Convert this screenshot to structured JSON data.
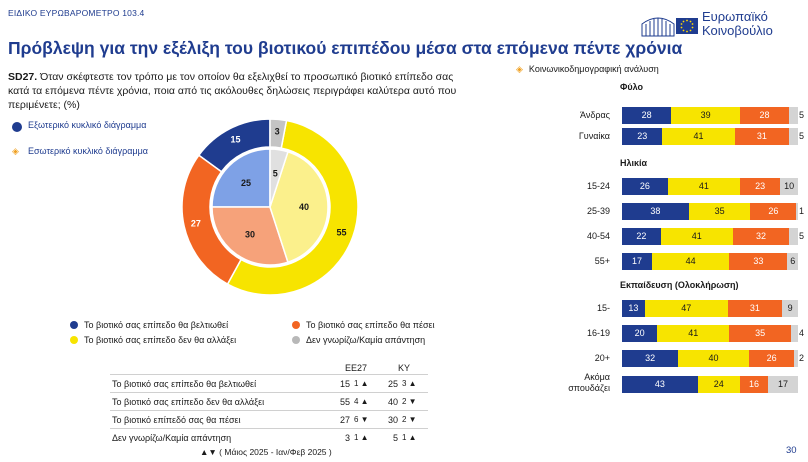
{
  "header": {
    "eyebrow": "ΕΙΔΙΚΟ ΕΥΡΩΒΑΡΟΜΕΤΡΟ 103.4",
    "title": "Πρόβλεψη για την εξέλιξη του βιοτικού επιπέδου μέσα στα επόμενα πέντε χρόνια",
    "logo_line1": "Ευρωπαϊκό",
    "logo_line2": "Κοινοβούλιο",
    "page_number": "30"
  },
  "question": {
    "code": "SD27.",
    "text": "Όταν σκέφτεστε τον τρόπο με τον οποίον θα εξελιχθεί το προσωπικό βιοτικό επίπεδο σας κατά τα επόμενα πέντε χρόνια, ποια από τις ακόλουθες δηλώσεις περιγράφει καλύτερα αυτό που περιμένετε; (%)"
  },
  "legend_top": {
    "outer": "Εξωτερικό κυκλικό διάγραμμα",
    "inner": "Εσωτερικό κυκλικό διάγραμμα"
  },
  "legend_bottom": [
    {
      "label": "Το βιοτικό σας επίπεδο θα βελτιωθεί",
      "color": "#1f3c8f"
    },
    {
      "label": "Το βιοτικό σας επίπεδο θα πέσει",
      "color": "#f26522"
    },
    {
      "label": "Το βιοτικό σας επίπεδο δεν θα αλλάξει",
      "color": "#f7e400"
    },
    {
      "label": "Δεν γνωρίζω/Καμία απάντηση",
      "color": "#b8b8b8"
    }
  ],
  "colors": {
    "improve": "#1f3c8f",
    "same": "#f7e400",
    "fall": "#f26522",
    "dk": "#c4c4c4",
    "improve_light": "#7ea1e6",
    "same_light": "#fbf08c",
    "fall_light": "#f6a27a",
    "dk_light": "#e0e0e0"
  },
  "table": {
    "col_eu": "EE27",
    "col_cy": "KY",
    "rows": [
      {
        "label": "Το βιοτικό σας επίπεδο θα βελτιωθεί",
        "eu": "15",
        "eu_chg": "1 ▲",
        "cy": "25",
        "cy_chg": "3 ▲"
      },
      {
        "label": "Το βιοτικό σας επίπεδο δεν θα αλλάξει",
        "eu": "55",
        "eu_chg": "4 ▲",
        "cy": "40",
        "cy_chg": "2 ▼"
      },
      {
        "label": "Το βιοτικό επίπεδό σας θα πέσει",
        "eu": "27",
        "eu_chg": "6 ▼",
        "cy": "30",
        "cy_chg": "2 ▼"
      },
      {
        "label": "Δεν γνωρίζω/Καμία απάντηση",
        "eu": "3",
        "eu_chg": "1 ▲",
        "cy": "5",
        "cy_chg": "1 ▲"
      }
    ],
    "footnote": "▲▼ ( Μάιος 2025 - Ιαν/Φεβ 2025 )"
  },
  "bars_header": "Κοινωνικοδημογραφική ανάλυση",
  "chart_data": [
    {
      "type": "pie",
      "title": "",
      "rings": [
        {
          "name": "Εξωτερικό κυκλικό διάγραμμα",
          "categories": [
            "Το βιοτικό σας επίπεδο θα βελτιωθεί",
            "Το βιοτικό σας επίπεδο θα πέσει",
            "Το βιοτικό σας επίπεδο δεν θα αλλάξει",
            "Δεν γνωρίζω/Καμία απάντηση"
          ],
          "values": [
            15,
            27,
            55,
            3
          ]
        },
        {
          "name": "Εσωτερικό κυκλικό διάγραμμα",
          "categories": [
            "Το βιοτικό σας επίπεδο θα βελτιωθεί",
            "Το βιοτικό σας επίπεδο θα πέσει",
            "Το βιοτικό σας επίπεδο δεν θα αλλάξει",
            "Δεν γνωρίζω/Καμία απάντηση"
          ],
          "values": [
            25,
            30,
            40,
            5
          ]
        }
      ]
    },
    {
      "type": "bar",
      "stacked": true,
      "orientation": "horizontal",
      "series_names": [
        "Το βιοτικό σας επίπεδο θα βελτιωθεί",
        "Το βιοτικό σας επίπεδο δεν θα αλλάξει",
        "Το βιοτικό σας επίπεδο θα πέσει",
        "Δεν γνωρίζω/Καμία απάντηση"
      ],
      "groups": [
        {
          "title": "Φύλο",
          "rows": [
            {
              "label": "Άνδρας",
              "values": [
                28,
                39,
                28,
                5
              ]
            },
            {
              "label": "Γυναίκα",
              "values": [
                23,
                41,
                31,
                5
              ]
            }
          ]
        },
        {
          "title": "Ηλικία",
          "rows": [
            {
              "label": "15-24",
              "values": [
                26,
                41,
                23,
                10
              ]
            },
            {
              "label": "25-39",
              "values": [
                38,
                35,
                26,
                1
              ]
            },
            {
              "label": "40-54",
              "values": [
                22,
                41,
                32,
                5
              ]
            },
            {
              "label": "55+",
              "values": [
                17,
                44,
                33,
                6
              ]
            }
          ]
        },
        {
          "title": "Εκπαίδευση (Ολοκλήρωση)",
          "rows": [
            {
              "label": "15-",
              "values": [
                13,
                47,
                31,
                9
              ]
            },
            {
              "label": "16-19",
              "values": [
                20,
                41,
                35,
                4
              ]
            },
            {
              "label": "20+",
              "values": [
                32,
                40,
                26,
                2
              ]
            },
            {
              "label": "Ακόμα σπουδάζει",
              "values": [
                43,
                24,
                16,
                17
              ]
            }
          ]
        }
      ]
    }
  ]
}
